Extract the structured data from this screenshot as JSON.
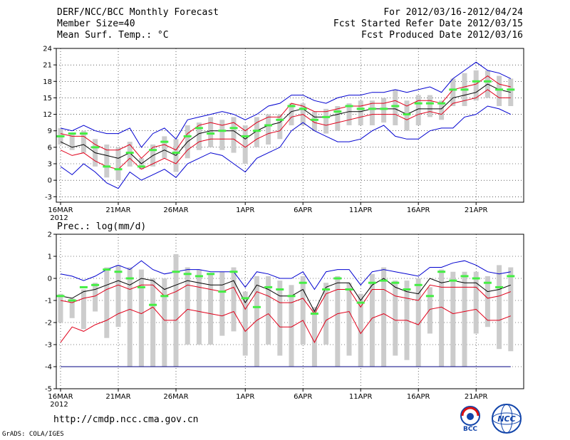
{
  "header": {
    "title": "DERF/NCC/BCC Monthly Forecast",
    "member_size": "Member Size=40",
    "variable": "Mean Surf. Temp.: °C",
    "forecast_period": "For 2012/03/16-2012/04/24",
    "started_refer": "Fcst Started Refer Date 2012/03/15",
    "produced": "Fcst Produced Date 2012/03/16"
  },
  "footer": {
    "url": "http://cmdp.ncc.cma.gov.cn",
    "grads": "GrADS: COLA/IGES",
    "logo_bcc": "BCC",
    "logo_ncc": "NCC"
  },
  "colors": {
    "box": "#cccccc",
    "ensemble_mean": "#000000",
    "spread": "#e0001a",
    "extremes": "#0000d0",
    "marker": "#44ee44",
    "grid": "#000000"
  },
  "chart_data": [
    {
      "type": "line",
      "title": "Mean Surf. Temp.: °C",
      "ylim": [
        -4,
        24
      ],
      "yticks": [
        -3,
        0,
        3,
        6,
        9,
        12,
        15,
        18,
        21,
        24
      ],
      "xticks": [
        {
          "day": 1,
          "label": "16MAR",
          "sublabel": "2012"
        },
        {
          "day": 6,
          "label": "21MAR"
        },
        {
          "day": 11,
          "label": "26MAR"
        },
        {
          "day": 17,
          "label": "1APR"
        },
        {
          "day": 22,
          "label": "6APR"
        },
        {
          "day": 27,
          "label": "11APR"
        },
        {
          "day": 32,
          "label": "16APR"
        },
        {
          "day": 37,
          "label": "21APR"
        }
      ],
      "days": [
        1,
        2,
        3,
        4,
        5,
        6,
        7,
        8,
        9,
        10,
        11,
        12,
        13,
        14,
        15,
        16,
        17,
        18,
        19,
        20,
        21,
        22,
        23,
        24,
        25,
        26,
        27,
        28,
        29,
        30,
        31,
        32,
        33,
        34,
        35,
        36,
        37,
        38,
        39,
        40
      ],
      "series": [
        {
          "name": "max",
          "values": [
            2.5,
            1.0,
            3.0,
            1.5,
            -0.5,
            -1.5,
            1.5,
            0.0,
            1.0,
            2.0,
            0.5,
            3.0,
            4.0,
            5.0,
            4.5,
            3.0,
            1.5,
            4.0,
            5.0,
            6.0,
            9.0,
            10.5,
            9.0,
            8.0,
            7.0,
            7.0,
            7.5,
            9.0,
            10.0,
            8.0,
            7.5,
            7.5,
            9.0,
            9.5,
            9.5,
            11.5,
            12.0,
            13.5,
            13.0,
            12.0
          ]
        },
        {
          "name": "upper",
          "values": [
            5.5,
            4.5,
            5.0,
            3.5,
            2.5,
            2.0,
            4.0,
            2.0,
            3.0,
            4.0,
            3.0,
            5.5,
            7.0,
            7.5,
            7.5,
            7.5,
            6.0,
            7.5,
            8.5,
            9.0,
            11.5,
            12.0,
            10.5,
            10.0,
            10.5,
            11.0,
            11.5,
            12.0,
            12.0,
            12.0,
            11.0,
            12.0,
            12.5,
            12.0,
            14.0,
            14.5,
            15.0,
            16.5,
            15.0,
            15.0
          ]
        },
        {
          "name": "mean",
          "values": [
            7.0,
            6.0,
            6.5,
            5.0,
            4.5,
            4.0,
            5.0,
            3.0,
            4.5,
            5.5,
            4.5,
            7.0,
            8.5,
            9.0,
            9.0,
            9.0,
            7.5,
            9.0,
            10.0,
            10.5,
            12.5,
            13.0,
            11.5,
            11.5,
            12.0,
            12.5,
            12.5,
            13.0,
            13.0,
            13.0,
            12.0,
            13.0,
            13.0,
            13.0,
            15.0,
            15.5,
            16.0,
            17.5,
            16.5,
            16.0
          ]
        },
        {
          "name": "lower",
          "values": [
            8.5,
            8.0,
            8.0,
            6.5,
            5.5,
            5.5,
            6.5,
            4.0,
            6.0,
            6.5,
            5.5,
            8.5,
            10.0,
            10.5,
            10.0,
            10.5,
            9.0,
            10.5,
            11.5,
            11.5,
            14.0,
            13.5,
            12.5,
            12.5,
            13.0,
            13.5,
            13.5,
            14.0,
            14.0,
            14.5,
            13.5,
            14.5,
            14.5,
            14.0,
            16.5,
            17.0,
            17.5,
            19.0,
            17.5,
            17.0
          ]
        },
        {
          "name": "min",
          "values": [
            9.5,
            9.0,
            10.0,
            9.0,
            8.5,
            8.5,
            9.5,
            6.0,
            8.5,
            9.5,
            7.5,
            11.0,
            11.5,
            12.0,
            12.5,
            12.0,
            11.0,
            12.0,
            13.5,
            14.0,
            15.5,
            15.5,
            14.5,
            14.0,
            15.0,
            15.5,
            15.5,
            16.0,
            16.0,
            16.5,
            16.0,
            16.5,
            17.0,
            16.0,
            18.5,
            20.0,
            21.5,
            20.0,
            19.5,
            18.5
          ]
        }
      ],
      "boxes": [
        {
          "day": 1,
          "low": 6.5,
          "high": 9.5,
          "obs": 8.0
        },
        {
          "day": 2,
          "low": 5.5,
          "high": 8.5,
          "obs": 8.5
        },
        {
          "day": 3,
          "low": 5.0,
          "high": 9.0,
          "obs": 8.5
        },
        {
          "day": 4,
          "low": 2.5,
          "high": 7.5,
          "obs": 6.0
        },
        {
          "day": 5,
          "low": 0.5,
          "high": 6.5,
          "obs": 2.5
        },
        {
          "day": 6,
          "low": 0.0,
          "high": 6.0,
          "obs": 2.0
        },
        {
          "day": 7,
          "low": 2.5,
          "high": 7.0,
          "obs": 5.0
        },
        {
          "day": 8,
          "low": 2.0,
          "high": 4.0,
          "obs": 2.5
        },
        {
          "day": 9,
          "low": 2.5,
          "high": 6.5,
          "obs": 5.5
        },
        {
          "day": 10,
          "low": 4.0,
          "high": 8.0,
          "obs": 7.0
        },
        {
          "day": 11,
          "low": 1.5,
          "high": 7.5,
          "obs": 5.0
        },
        {
          "day": 12,
          "low": 4.0,
          "high": 10.0,
          "obs": 8.0
        },
        {
          "day": 13,
          "low": 5.5,
          "high": 10.5,
          "obs": 9.5
        },
        {
          "day": 14,
          "low": 6.0,
          "high": 11.5,
          "obs": 8.5
        },
        {
          "day": 15,
          "low": 5.5,
          "high": 11.0,
          "obs": 9.0
        },
        {
          "day": 16,
          "low": 5.0,
          "high": 11.5,
          "obs": 9.5
        },
        {
          "day": 17,
          "low": 3.0,
          "high": 10.0,
          "obs": 8.0
        },
        {
          "day": 18,
          "low": 6.0,
          "high": 11.5,
          "obs": 9.0
        },
        {
          "day": 19,
          "low": 6.5,
          "high": 12.0,
          "obs": 10.0
        },
        {
          "day": 20,
          "low": 7.5,
          "high": 12.0,
          "obs": 11.0
        },
        {
          "day": 21,
          "low": 10.0,
          "high": 14.0,
          "obs": 13.5
        },
        {
          "day": 22,
          "low": 10.0,
          "high": 14.0,
          "obs": 13.0
        },
        {
          "day": 23,
          "low": 9.0,
          "high": 12.5,
          "obs": 11.0
        },
        {
          "day": 24,
          "low": 8.5,
          "high": 13.0,
          "obs": 11.5
        },
        {
          "day": 25,
          "low": 9.0,
          "high": 13.5,
          "obs": 12.5
        },
        {
          "day": 26,
          "low": 10.0,
          "high": 14.0,
          "obs": 13.5
        },
        {
          "day": 27,
          "low": 10.0,
          "high": 14.5,
          "obs": 13.0
        },
        {
          "day": 28,
          "low": 10.0,
          "high": 14.5,
          "obs": 13.0
        },
        {
          "day": 29,
          "low": 10.5,
          "high": 15.0,
          "obs": 13.0
        },
        {
          "day": 30,
          "low": 10.0,
          "high": 16.5,
          "obs": 13.5
        },
        {
          "day": 31,
          "low": 9.0,
          "high": 14.5,
          "obs": 12.0
        },
        {
          "day": 32,
          "low": 10.0,
          "high": 15.5,
          "obs": 14.0
        },
        {
          "day": 33,
          "low": 11.5,
          "high": 15.5,
          "obs": 14.0
        },
        {
          "day": 34,
          "low": 11.0,
          "high": 14.5,
          "obs": 14.0
        },
        {
          "day": 35,
          "low": 13.5,
          "high": 18.5,
          "obs": 16.5
        },
        {
          "day": 36,
          "low": 13.5,
          "high": 19.5,
          "obs": 16.5
        },
        {
          "day": 37,
          "low": 14.5,
          "high": 20.0,
          "obs": 18.0
        },
        {
          "day": 38,
          "low": 15.0,
          "high": 20.0,
          "obs": 18.0
        },
        {
          "day": 39,
          "low": 13.5,
          "high": 19.0,
          "obs": 16.5
        },
        {
          "day": 40,
          "low": 13.5,
          "high": 18.5,
          "obs": 16.5
        }
      ]
    },
    {
      "type": "line",
      "title": "Prec.: log(mm/d)",
      "ylim": [
        -5,
        2
      ],
      "yticks": [
        -5,
        -4,
        -3,
        -2,
        -1,
        0,
        1,
        2
      ],
      "xticks": [
        {
          "day": 1,
          "label": "16MAR",
          "sublabel": "2012"
        },
        {
          "day": 6,
          "label": "21MAR"
        },
        {
          "day": 11,
          "label": "26MAR"
        },
        {
          "day": 17,
          "label": "1APR"
        },
        {
          "day": 22,
          "label": "6APR"
        },
        {
          "day": 27,
          "label": "11APR"
        },
        {
          "day": 32,
          "label": "16APR"
        },
        {
          "day": 37,
          "label": "21APR"
        }
      ],
      "days": [
        1,
        2,
        3,
        4,
        5,
        6,
        7,
        8,
        9,
        10,
        11,
        12,
        13,
        14,
        15,
        16,
        17,
        18,
        19,
        20,
        21,
        22,
        23,
        24,
        25,
        26,
        27,
        28,
        29,
        30,
        31,
        32,
        33,
        34,
        35,
        36,
        37,
        38,
        39,
        40
      ],
      "baseline": -4,
      "series": [
        {
          "name": "lower",
          "values": [
            -2.9,
            -2.2,
            -2.4,
            -2.1,
            -1.9,
            -1.6,
            -1.4,
            -1.6,
            -1.3,
            -1.9,
            -1.9,
            -1.4,
            -1.5,
            -1.6,
            -1.7,
            -1.5,
            -2.4,
            -1.9,
            -1.6,
            -2.2,
            -2.2,
            -1.9,
            -2.9,
            -1.9,
            -1.6,
            -1.5,
            -2.5,
            -1.8,
            -1.6,
            -1.9,
            -1.9,
            -2.1,
            -1.4,
            -1.3,
            -1.6,
            -1.5,
            -1.4,
            -1.9,
            -1.9,
            -1.7
          ]
        },
        {
          "name": "upper",
          "values": [
            -1.0,
            -1.1,
            -0.9,
            -0.8,
            -0.5,
            -0.3,
            -0.5,
            -0.3,
            -0.3,
            -0.8,
            -0.6,
            -0.3,
            -0.4,
            -0.5,
            -0.6,
            -0.4,
            -1.4,
            -0.6,
            -0.8,
            -1.1,
            -1.1,
            -0.9,
            -1.6,
            -0.7,
            -0.5,
            -0.5,
            -1.3,
            -0.5,
            -0.5,
            -0.8,
            -0.9,
            -1.0,
            -0.3,
            -0.4,
            -0.4,
            -0.4,
            -0.4,
            -0.9,
            -0.8,
            -0.6
          ]
        },
        {
          "name": "mean",
          "values": [
            -0.8,
            -0.9,
            -0.6,
            -0.5,
            -0.3,
            -0.1,
            -0.3,
            0.0,
            -0.1,
            -0.5,
            -0.3,
            -0.1,
            -0.2,
            -0.3,
            -0.3,
            -0.1,
            -1.1,
            -0.3,
            -0.5,
            -0.8,
            -0.8,
            -0.5,
            -1.5,
            -0.4,
            -0.2,
            -0.2,
            -1.0,
            -0.3,
            0.0,
            -0.4,
            -0.6,
            -0.7,
            0.0,
            -0.2,
            -0.1,
            -0.2,
            -0.2,
            -0.6,
            -0.5,
            -0.3
          ]
        },
        {
          "name": "max",
          "values": [
            0.2,
            0.1,
            -0.1,
            0.1,
            0.4,
            0.6,
            0.4,
            0.8,
            0.4,
            0.2,
            0.3,
            0.4,
            0.4,
            0.3,
            0.3,
            0.3,
            -0.4,
            0.3,
            0.2,
            0.0,
            0.0,
            0.3,
            -0.5,
            0.3,
            0.4,
            0.4,
            -0.3,
            0.3,
            0.4,
            0.3,
            0.2,
            0.1,
            0.5,
            0.5,
            0.7,
            0.8,
            0.6,
            0.3,
            0.2,
            0.3
          ]
        }
      ],
      "boxes": [
        {
          "day": 1,
          "low": -2.0,
          "high": -0.7,
          "obs": -0.8
        },
        {
          "day": 2,
          "low": -1.8,
          "high": -0.9,
          "obs": -1.0
        },
        {
          "day": 3,
          "low": -2.3,
          "high": -0.5,
          "obs": -0.4
        },
        {
          "day": 4,
          "low": -1.5,
          "high": -0.2,
          "obs": -0.3
        },
        {
          "day": 5,
          "low": -2.7,
          "high": 0.5,
          "obs": 0.4
        },
        {
          "day": 6,
          "low": -2.2,
          "high": 0.6,
          "obs": 0.3
        },
        {
          "day": 7,
          "low": -4.0,
          "high": 0.5,
          "obs": 0.0
        },
        {
          "day": 8,
          "low": -4.0,
          "high": 0.4,
          "obs": -0.4
        },
        {
          "day": 9,
          "low": -4.0,
          "high": 0.0,
          "obs": -1.2
        },
        {
          "day": 10,
          "low": -4.0,
          "high": 0.0,
          "obs": -0.8
        },
        {
          "day": 11,
          "low": -4.0,
          "high": 1.1,
          "obs": 0.3
        },
        {
          "day": 12,
          "low": -3.0,
          "high": 0.5,
          "obs": 0.2
        },
        {
          "day": 13,
          "low": -3.0,
          "high": 0.4,
          "obs": 0.1
        },
        {
          "day": 14,
          "low": -3.0,
          "high": 0.2,
          "obs": 0.2
        },
        {
          "day": 15,
          "low": -2.6,
          "high": 0.3,
          "obs": -0.6
        },
        {
          "day": 16,
          "low": -2.4,
          "high": 0.5,
          "obs": 0.3
        },
        {
          "day": 17,
          "low": -3.5,
          "high": -0.6,
          "obs": -0.9
        },
        {
          "day": 18,
          "low": -4.0,
          "high": 0.1,
          "obs": -1.3
        },
        {
          "day": 19,
          "low": -3.0,
          "high": 0.1,
          "obs": -0.4
        },
        {
          "day": 20,
          "low": -3.5,
          "high": -0.1,
          "obs": -0.5
        },
        {
          "day": 21,
          "low": -4.0,
          "high": -0.3,
          "obs": -0.8
        },
        {
          "day": 22,
          "low": -3.0,
          "high": 0.1,
          "obs": -0.2
        },
        {
          "day": 23,
          "low": -4.0,
          "high": -1.3,
          "obs": -1.6
        },
        {
          "day": 24,
          "low": -3.0,
          "high": -0.2,
          "obs": -0.5
        },
        {
          "day": 25,
          "low": -4.0,
          "high": 0.1,
          "obs": 0.0
        },
        {
          "day": 26,
          "low": -3.5,
          "high": -0.2,
          "obs": -0.5
        },
        {
          "day": 27,
          "low": -4.0,
          "high": -0.7,
          "obs": -1.1
        },
        {
          "day": 28,
          "low": -4.0,
          "high": 0.2,
          "obs": -0.2
        },
        {
          "day": 29,
          "low": -4.0,
          "high": 0.5,
          "obs": -0.1
        },
        {
          "day": 30,
          "low": -3.5,
          "high": -0.1,
          "obs": -0.2
        },
        {
          "day": 31,
          "low": -3.7,
          "high": -0.1,
          "obs": -0.5
        },
        {
          "day": 32,
          "low": -4.0,
          "high": 0.0,
          "obs": -0.3
        },
        {
          "day": 33,
          "low": -2.5,
          "high": -0.4,
          "obs": -0.8
        },
        {
          "day": 34,
          "low": -4.0,
          "high": 0.4,
          "obs": 0.3
        },
        {
          "day": 35,
          "low": -4.0,
          "high": 0.3,
          "obs": -0.1
        },
        {
          "day": 36,
          "low": -4.0,
          "high": 0.3,
          "obs": 0.1
        },
        {
          "day": 37,
          "low": -2.5,
          "high": 0.3,
          "obs": 0.0
        },
        {
          "day": 38,
          "low": -2.2,
          "high": 0.1,
          "obs": -0.2
        },
        {
          "day": 39,
          "low": -3.2,
          "high": 0.6,
          "obs": -0.4
        },
        {
          "day": 40,
          "low": -3.3,
          "high": 0.5,
          "obs": 0.1
        }
      ]
    }
  ]
}
